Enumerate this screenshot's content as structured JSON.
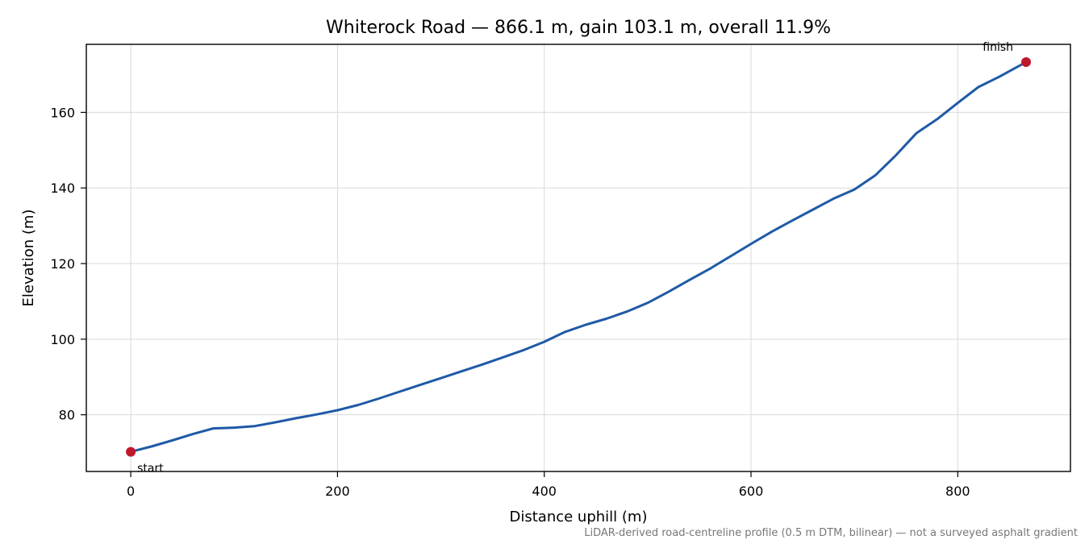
{
  "chart_data": {
    "type": "line",
    "title": "Whiterock Road — 866.1 m, gain 103.1 m, overall 11.9%",
    "xlabel": "Distance uphill (m)",
    "ylabel": "Elevation (m)",
    "footnote": "LiDAR-derived road-centreline profile (0.5 m DTM, bilinear) — not a surveyed asphalt gradient",
    "xlim": [
      -43,
      909
    ],
    "ylim": [
      65,
      178
    ],
    "xticks": [
      0,
      200,
      400,
      600,
      800
    ],
    "yticks": [
      80,
      100,
      120,
      140,
      160
    ],
    "grid": true,
    "line_color": "#1f5aa6",
    "marker_color": "#c0182b",
    "series": [
      {
        "x": [
          0,
          20,
          40,
          60,
          80,
          90,
          100,
          120,
          140,
          160,
          180,
          200,
          220,
          240,
          260,
          280,
          300,
          320,
          340,
          360,
          380,
          400,
          420,
          440,
          460,
          480,
          500,
          520,
          540,
          560,
          580,
          600,
          620,
          640,
          660,
          680,
          700,
          720,
          740,
          760,
          780,
          800,
          820,
          840,
          866.1
        ],
        "y": [
          70.2,
          71.6,
          73.2,
          74.9,
          76.4,
          76.5,
          76.6,
          77.0,
          78.0,
          79.1,
          80.1,
          81.2,
          82.6,
          84.3,
          86.1,
          87.9,
          89.7,
          91.5,
          93.3,
          95.2,
          97.1,
          99.3,
          101.9,
          103.8,
          105.4,
          107.3,
          109.6,
          112.5,
          115.6,
          118.6,
          121.9,
          125.2,
          128.4,
          131.4,
          134.3,
          137.2,
          139.6,
          143.3,
          148.6,
          154.5,
          158.2,
          162.5,
          166.7,
          169.4,
          173.3
        ]
      }
    ],
    "annotations": [
      {
        "label": "start",
        "x": 0,
        "y": 70.2
      },
      {
        "label": "finish",
        "x": 866.1,
        "y": 173.3
      }
    ]
  }
}
